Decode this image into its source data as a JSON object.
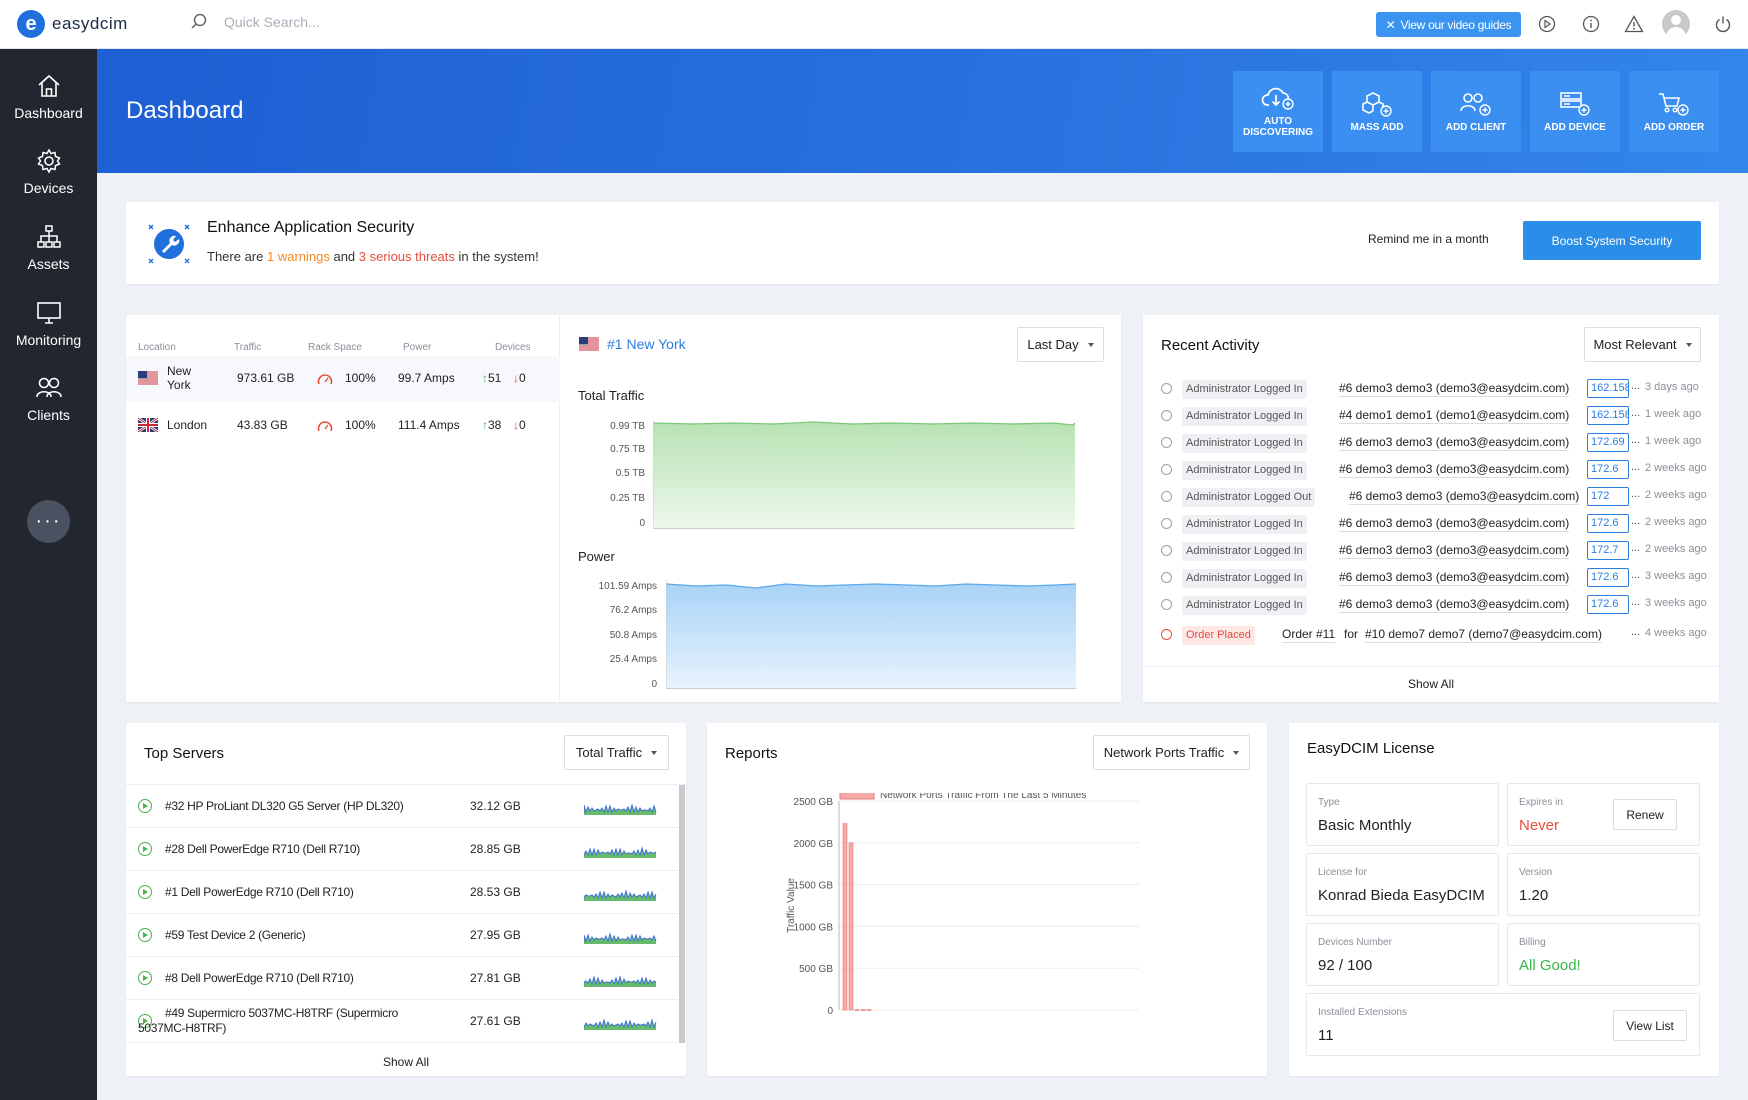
{
  "app": {
    "name": "easydcim"
  },
  "search": {
    "placeholder": "Quick Search..."
  },
  "topbar": {
    "video_label": "View our video guides"
  },
  "sidebar": {
    "items": [
      {
        "label": "Dashboard",
        "icon": "home-icon"
      },
      {
        "label": "Devices",
        "icon": "gear-icon"
      },
      {
        "label": "Assets",
        "icon": "sitemap-icon"
      },
      {
        "label": "Monitoring",
        "icon": "monitor-icon"
      },
      {
        "label": "Clients",
        "icon": "users-icon"
      }
    ],
    "more_label": "···"
  },
  "hero": {
    "title": "Dashboard",
    "actions": [
      {
        "label1": "AUTO",
        "label2": "DISCOVERING"
      },
      {
        "label1": "MASS ADD",
        "label2": ""
      },
      {
        "label1": "ADD CLIENT",
        "label2": ""
      },
      {
        "label1": "ADD DEVICE",
        "label2": ""
      },
      {
        "label1": "ADD ORDER",
        "label2": ""
      }
    ]
  },
  "security": {
    "title": "Enhance Application Security",
    "msg_a": "There are ",
    "warnings": "1 warnings",
    "msg_b": " and ",
    "threats": "3 serious threats",
    "msg_c": " in the system!",
    "remind": "Remind me in a month",
    "boost": "Boost System Security"
  },
  "locations": {
    "headers": [
      "Location",
      "Traffic",
      "Rack Space",
      "Power",
      "Devices"
    ],
    "rows": [
      {
        "name1": "New",
        "name2": "York",
        "traffic": "973.61 GB",
        "rack": "100%",
        "power": "99.7 Amps",
        "up": "51",
        "down": "0"
      },
      {
        "name1": "London",
        "name2": "",
        "traffic": "43.83 GB",
        "rack": "100%",
        "power": "111.4 Amps",
        "up": "38",
        "down": "0"
      }
    ],
    "selected_title": "#1 New York",
    "period": "Last Day",
    "traffic_title": "Total Traffic",
    "traffic_ticks": [
      "0.99 TB",
      "0.75 TB",
      "0.5 TB",
      "0.25 TB",
      "0"
    ],
    "power_title": "Power",
    "power_ticks": [
      "101.59 Amps",
      "76.2 Amps",
      "50.8 Amps",
      "25.4 Amps",
      "0"
    ]
  },
  "activity": {
    "title": "Recent Activity",
    "filter": "Most Relevant",
    "items": [
      {
        "tag": "Administrator Logged In",
        "who": "#6 demo3 demo3 (demo3@easydcim.com)",
        "ip": "162.158",
        "when": "3 days ago",
        "kind": "normal"
      },
      {
        "tag": "Administrator Logged In",
        "who": "#4 demo1 demo1 (demo1@easydcim.com)",
        "ip": "162.158",
        "when": "1 week ago",
        "kind": "normal"
      },
      {
        "tag": "Administrator Logged In",
        "who": "#6 demo3 demo3 (demo3@easydcim.com)",
        "ip": "172.69",
        "when": "1 week ago",
        "kind": "normal"
      },
      {
        "tag": "Administrator Logged In",
        "who": "#6 demo3 demo3 (demo3@easydcim.com)",
        "ip": "172.6",
        "when": "2 weeks ago",
        "kind": "normal"
      },
      {
        "tag": "Administrator Logged Out",
        "who": "#6 demo3 demo3 (demo3@easydcim.com)",
        "ip": "172",
        "when": "2 weeks ago",
        "kind": "normal"
      },
      {
        "tag": "Administrator Logged In",
        "who": "#6 demo3 demo3 (demo3@easydcim.com)",
        "ip": "172.6",
        "when": "2 weeks ago",
        "kind": "normal"
      },
      {
        "tag": "Administrator Logged In",
        "who": "#6 demo3 demo3 (demo3@easydcim.com)",
        "ip": "172.7",
        "when": "2 weeks ago",
        "kind": "normal"
      },
      {
        "tag": "Administrator Logged In",
        "who": "#6 demo3 demo3 (demo3@easydcim.com)",
        "ip": "172.6",
        "when": "3 weeks ago",
        "kind": "normal"
      },
      {
        "tag": "Administrator Logged In",
        "who": "#6 demo3 demo3 (demo3@easydcim.com)",
        "ip": "172.6",
        "when": "3 weeks ago",
        "kind": "normal"
      }
    ],
    "order": {
      "tag": "Order Placed",
      "order": "Order #11",
      "for": "for",
      "who": "#10 demo7 demo7 (demo7@easydcim.com)",
      "when": "4 weeks ago"
    },
    "show_all": "Show All"
  },
  "top_servers": {
    "title": "Top Servers",
    "filter": "Total Traffic",
    "rows": [
      {
        "name": "#32 HP ProLiant DL320 G5 Server (HP DL320)",
        "name2": "",
        "size": "32.12 GB"
      },
      {
        "name": "#28 Dell PowerEdge R710 (Dell R710)",
        "name2": "",
        "size": "28.85 GB"
      },
      {
        "name": "#1 Dell PowerEdge R710 (Dell R710)",
        "name2": "",
        "size": "28.53 GB"
      },
      {
        "name": "#59 Test Device 2 (Generic)",
        "name2": "",
        "size": "27.95 GB"
      },
      {
        "name": "#8 Dell PowerEdge R710 (Dell R710)",
        "name2": "",
        "size": "27.81 GB"
      },
      {
        "name": "#49 Supermicro 5037MC-H8TRF (Supermicro",
        "name2": "5037MC-H8TRF)",
        "size": "27.61 GB"
      }
    ],
    "show_all": "Show All"
  },
  "reports": {
    "title": "Reports",
    "filter": "Network Ports Traffic"
  },
  "chart_data": {
    "type": "bar",
    "legend": [
      "Network Ports Traffic From The Last 5 Minutes"
    ],
    "ylabel": "Traffic Value",
    "yticks": [
      "2500 GB",
      "2000 GB",
      "1500 GB",
      "1000 GB",
      "500 GB",
      "0"
    ],
    "ylim": [
      0,
      2500
    ],
    "series": [
      {
        "name": "Network Ports Traffic From The Last 5 Minutes",
        "values": [
          2230,
          2000,
          5,
          5,
          5
        ]
      }
    ],
    "color": "#f6a9a9"
  },
  "license": {
    "title": "EasyDCIM License",
    "type_label": "Type",
    "type_value": "Basic Monthly",
    "expires_label": "Expires in",
    "expires_value": "Never",
    "renew": "Renew",
    "license_for_label": "License for",
    "license_for_value": "Konrad Bieda EasyDCIM",
    "version_label": "Version",
    "version_value": "1.20",
    "devices_label": "Devices Number",
    "devices_value": "92 / 100",
    "billing_label": "Billing",
    "billing_value": "All Good!",
    "ext_label": "Installed Extensions",
    "ext_value": "11",
    "view_list": "View List"
  },
  "colors": {
    "accent": "#2a7de1",
    "warning": "#f58a1f",
    "danger": "#e74c3c",
    "success": "#3bb54a"
  }
}
